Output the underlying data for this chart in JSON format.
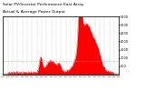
{
  "title_line1": "Solar PV/Inverter Performance East Array",
  "title_line2": "Actual & Average Power Output",
  "bg_color": "#ffffff",
  "plot_bg_color": "#ffffff",
  "grid_color": "#888888",
  "fill_color": "#ff0000",
  "line_color": "#cc0000",
  "avg_line_color": "#aaaaff",
  "ylim": [
    0,
    3500
  ],
  "yticks_right": [
    500,
    1000,
    1500,
    2000,
    2500,
    3000,
    3500
  ],
  "num_points": 400,
  "title_fontsize": 3.2,
  "tick_fontsize": 2.5,
  "label_fontsize": 3.0
}
